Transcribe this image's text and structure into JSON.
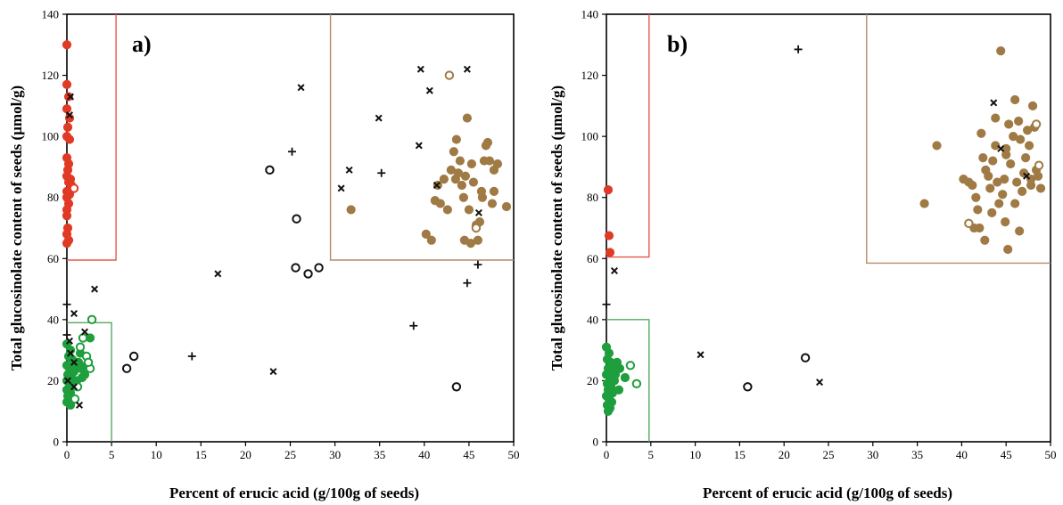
{
  "figure": {
    "colors": {
      "red": "#e03a24",
      "green": "#1e9e3c",
      "brown": "#a07a45",
      "black": "#111111",
      "frame": "#000000",
      "red_box": "#e8584a",
      "brown_box": "#b98a66",
      "green_box": "#55a860"
    }
  },
  "chart_data": [
    {
      "type": "scatter",
      "panel_label": "a)",
      "xlabel": "Percent of erucic acid (g/100g of seeds)",
      "ylabel": "Total glucosinolate content of seeds (µmol/g)",
      "xlim": [
        0,
        50
      ],
      "ylim": [
        0,
        140
      ],
      "x_ticks": [
        "0",
        "5",
        "10",
        "15",
        "20",
        "25",
        "30",
        "35",
        "40",
        "45",
        "50"
      ],
      "y_ticks": [
        "0",
        "20",
        "40",
        "60",
        "80",
        "100",
        "120",
        "140"
      ],
      "grid": false,
      "legend": "none",
      "boxes": [
        {
          "color": "red",
          "x0": 0,
          "x1": 5.5,
          "y0": 59.5,
          "y1": 140
        },
        {
          "color": "brown",
          "x0": 29.5,
          "x1": 50,
          "y0": 59.5,
          "y1": 140
        },
        {
          "color": "green",
          "x0": 0,
          "x1": 5,
          "y0": 39,
          "y1": 0
        }
      ],
      "series": [
        {
          "marker": "filled-circle",
          "color": "red",
          "points": [
            [
              0,
              130
            ],
            [
              0,
              117
            ],
            [
              0.2,
              113
            ],
            [
              0,
              109
            ],
            [
              0.3,
              106
            ],
            [
              0.1,
              103
            ],
            [
              0,
              100
            ],
            [
              0.3,
              99
            ],
            [
              0,
              93
            ],
            [
              0.2,
              91
            ],
            [
              0.1,
              89
            ],
            [
              0,
              87
            ],
            [
              0.4,
              86
            ],
            [
              0.2,
              85
            ],
            [
              0.5,
              84
            ],
            [
              0,
              82
            ],
            [
              0.3,
              81
            ],
            [
              0,
              80
            ],
            [
              0.2,
              78
            ],
            [
              0,
              76
            ],
            [
              0,
              74
            ],
            [
              0.1,
              70
            ],
            [
              0,
              68
            ],
            [
              0.2,
              66
            ],
            [
              0,
              65
            ]
          ]
        },
        {
          "marker": "open-circle",
          "color": "red",
          "points": [
            [
              0.8,
              83
            ]
          ]
        },
        {
          "marker": "filled-circle",
          "color": "green",
          "points": [
            [
              0,
              32
            ],
            [
              0.4,
              30
            ],
            [
              0.2,
              28
            ],
            [
              0.6,
              27
            ],
            [
              0,
              25
            ],
            [
              0.3,
              24
            ],
            [
              0.8,
              23
            ],
            [
              0.1,
              22
            ],
            [
              0.5,
              21
            ],
            [
              0,
              20
            ],
            [
              0.3,
              19
            ],
            [
              0.6,
              18
            ],
            [
              0,
              17
            ],
            [
              0.4,
              16
            ],
            [
              0.1,
              15
            ],
            [
              0.7,
              14
            ],
            [
              0,
              13
            ],
            [
              0.4,
              12
            ],
            [
              1.3,
              26
            ],
            [
              1.6,
              24
            ],
            [
              2.0,
              22
            ],
            [
              2.4,
              26
            ],
            [
              2.6,
              34
            ],
            [
              1.1,
              20
            ],
            [
              0.9,
              25
            ],
            [
              1.5,
              29
            ],
            [
              2.2,
              25
            ],
            [
              1.7,
              21
            ]
          ]
        },
        {
          "marker": "open-circle",
          "color": "green",
          "points": [
            [
              2.8,
              40
            ],
            [
              1.5,
              31
            ],
            [
              2.2,
              28
            ],
            [
              2.6,
              24
            ],
            [
              2.4,
              26
            ],
            [
              1.2,
              18
            ],
            [
              0.9,
              14
            ],
            [
              1.8,
              34
            ]
          ]
        },
        {
          "marker": "filled-circle",
          "color": "brown",
          "points": [
            [
              31.8,
              76
            ],
            [
              40.2,
              68
            ],
            [
              40.8,
              66
            ],
            [
              41.2,
              79
            ],
            [
              41.5,
              84
            ],
            [
              41.8,
              78
            ],
            [
              42.2,
              86
            ],
            [
              42.6,
              76
            ],
            [
              43.0,
              89
            ],
            [
              43.3,
              95
            ],
            [
              43.6,
              99
            ],
            [
              43.8,
              88
            ],
            [
              44.0,
              92
            ],
            [
              44.2,
              84
            ],
            [
              44.4,
              80
            ],
            [
              44.6,
              87
            ],
            [
              44.8,
              106
            ],
            [
              45.0,
              76
            ],
            [
              45.3,
              91
            ],
            [
              45.5,
              85
            ],
            [
              45.8,
              71
            ],
            [
              46.0,
              66
            ],
            [
              46.2,
              72
            ],
            [
              46.5,
              80
            ],
            [
              46.7,
              92
            ],
            [
              46.9,
              97
            ],
            [
              47.1,
              98
            ],
            [
              47.3,
              92
            ],
            [
              47.6,
              78
            ],
            [
              47.8,
              82
            ],
            [
              48.2,
              91
            ],
            [
              49.2,
              77
            ],
            [
              45.2,
              65
            ],
            [
              44.5,
              66
            ],
            [
              46.4,
              82
            ],
            [
              47.8,
              89
            ],
            [
              43.5,
              86
            ]
          ]
        },
        {
          "marker": "open-circle",
          "color": "brown",
          "points": [
            [
              42.8,
              120
            ],
            [
              45.8,
              70
            ]
          ]
        },
        {
          "marker": "open-circle",
          "color": "black",
          "points": [
            [
              7.5,
              28
            ],
            [
              6.7,
              24
            ],
            [
              22.7,
              89
            ],
            [
              25.7,
              73
            ],
            [
              25.6,
              57
            ],
            [
              27.0,
              55
            ],
            [
              28.2,
              57
            ],
            [
              43.6,
              18
            ]
          ]
        },
        {
          "marker": "x",
          "color": "black",
          "points": [
            [
              0.4,
              113
            ],
            [
              0.3,
              107
            ],
            [
              3.1,
              50
            ],
            [
              0.8,
              42
            ],
            [
              0.3,
              33
            ],
            [
              2,
              36
            ],
            [
              0.4,
              29
            ],
            [
              0.8,
              26
            ],
            [
              0.8,
              18
            ],
            [
              1.4,
              12
            ],
            [
              0.1,
              20
            ],
            [
              16.9,
              55
            ],
            [
              23.1,
              23
            ],
            [
              26.2,
              116
            ],
            [
              30.7,
              83
            ],
            [
              31.6,
              89
            ],
            [
              34.9,
              106
            ],
            [
              39.4,
              97
            ],
            [
              39.6,
              122
            ],
            [
              40.6,
              115
            ],
            [
              44.8,
              122
            ],
            [
              41.4,
              84
            ],
            [
              46.1,
              75
            ]
          ]
        },
        {
          "marker": "plus",
          "color": "black",
          "points": [
            [
              25.2,
              95
            ],
            [
              35.2,
              88
            ],
            [
              46,
              58
            ],
            [
              44.8,
              52
            ],
            [
              38.8,
              38
            ],
            [
              14,
              28
            ],
            [
              0,
              45
            ],
            [
              0,
              35
            ]
          ]
        }
      ]
    },
    {
      "type": "scatter",
      "panel_label": "b)",
      "xlabel": "Percent of erucic acid (g/100g of seeds)",
      "ylabel": "Total glucosinolate content of seeds (µmol/g)",
      "xlim": [
        0,
        50
      ],
      "ylim": [
        0,
        140
      ],
      "x_ticks": [
        "0",
        "5",
        "10",
        "15",
        "20",
        "25",
        "30",
        "35",
        "40",
        "45",
        "50"
      ],
      "y_ticks": [
        "0",
        "20",
        "40",
        "60",
        "80",
        "100",
        "120",
        "140"
      ],
      "grid": false,
      "legend": "none",
      "boxes": [
        {
          "color": "red",
          "x0": 0,
          "x1": 4.8,
          "y0": 60.5,
          "y1": 140
        },
        {
          "color": "brown",
          "x0": 29.3,
          "x1": 50,
          "y0": 58.5,
          "y1": 140
        },
        {
          "color": "green",
          "x0": 0,
          "x1": 4.8,
          "y0": 40,
          "y1": 0
        }
      ],
      "series": [
        {
          "marker": "filled-circle",
          "color": "red",
          "points": [
            [
              0.2,
              82.5
            ],
            [
              0.3,
              67.5
            ],
            [
              0.4,
              62
            ]
          ]
        },
        {
          "marker": "filled-circle",
          "color": "green",
          "points": [
            [
              0,
              31
            ],
            [
              0.3,
              29
            ],
            [
              0.1,
              27
            ],
            [
              0.5,
              26
            ],
            [
              0.8,
              25
            ],
            [
              0.2,
              24
            ],
            [
              0.6,
              23
            ],
            [
              0,
              22
            ],
            [
              0.4,
              21
            ],
            [
              0.9,
              20
            ],
            [
              0.1,
              19
            ],
            [
              0.5,
              18
            ],
            [
              0.2,
              17
            ],
            [
              0.7,
              16
            ],
            [
              0,
              15
            ],
            [
              0.3,
              14
            ],
            [
              0.6,
              13
            ],
            [
              0.1,
              12
            ],
            [
              0.4,
              11
            ],
            [
              0.2,
              10
            ],
            [
              1.2,
              26
            ],
            [
              1.5,
              24
            ],
            [
              2.1,
              21
            ],
            [
              1.0,
              22
            ],
            [
              1.4,
              17
            ]
          ]
        },
        {
          "marker": "open-circle",
          "color": "green",
          "points": [
            [
              2.7,
              25
            ],
            [
              3.4,
              19
            ]
          ]
        },
        {
          "marker": "filled-circle",
          "color": "brown",
          "points": [
            [
              37.2,
              97
            ],
            [
              35.8,
              78
            ],
            [
              40.2,
              86
            ],
            [
              40.8,
              85
            ],
            [
              41.2,
              84
            ],
            [
              41.6,
              80
            ],
            [
              41.8,
              76
            ],
            [
              42.0,
              70
            ],
            [
              42.2,
              101
            ],
            [
              42.4,
              93
            ],
            [
              42.7,
              89
            ],
            [
              43.0,
              87
            ],
            [
              43.2,
              83
            ],
            [
              43.5,
              92
            ],
            [
              43.8,
              97
            ],
            [
              44.0,
              85
            ],
            [
              44.2,
              78
            ],
            [
              44.4,
              128
            ],
            [
              44.6,
              81
            ],
            [
              44.8,
              86
            ],
            [
              45.0,
              94
            ],
            [
              45.3,
              104
            ],
            [
              45.5,
              91
            ],
            [
              45.8,
              100
            ],
            [
              46.0,
              112
            ],
            [
              46.2,
              85
            ],
            [
              46.4,
              105
            ],
            [
              46.6,
              99
            ],
            [
              46.8,
              82
            ],
            [
              47.0,
              88
            ],
            [
              47.2,
              93
            ],
            [
              47.4,
              102
            ],
            [
              47.6,
              97
            ],
            [
              47.8,
              84
            ],
            [
              48.0,
              110
            ],
            [
              48.2,
              103
            ],
            [
              48.4,
              89
            ],
            [
              48.6,
              87
            ],
            [
              48.9,
              83
            ],
            [
              45.2,
              63
            ],
            [
              46.5,
              69
            ],
            [
              43.4,
              75
            ],
            [
              44.9,
              72
            ],
            [
              42.6,
              66
            ],
            [
              41.4,
              70
            ],
            [
              43.8,
              106
            ],
            [
              45.0,
              96
            ],
            [
              46.0,
              78
            ],
            [
              47.8,
              86
            ]
          ]
        },
        {
          "marker": "open-circle",
          "color": "brown",
          "points": [
            [
              40.8,
              71.5
            ],
            [
              48.4,
              104
            ],
            [
              48.7,
              90.5
            ]
          ]
        },
        {
          "marker": "open-circle",
          "color": "black",
          "points": [
            [
              15.9,
              18
            ],
            [
              22.4,
              27.5
            ]
          ]
        },
        {
          "marker": "x",
          "color": "black",
          "points": [
            [
              0.9,
              56
            ],
            [
              10.6,
              28.5
            ],
            [
              24,
              19.5
            ],
            [
              43.6,
              111
            ],
            [
              44.4,
              96
            ],
            [
              47.3,
              87
            ]
          ]
        },
        {
          "marker": "plus",
          "color": "black",
          "points": [
            [
              21.6,
              128.5
            ],
            [
              0,
              45
            ]
          ]
        }
      ]
    }
  ]
}
